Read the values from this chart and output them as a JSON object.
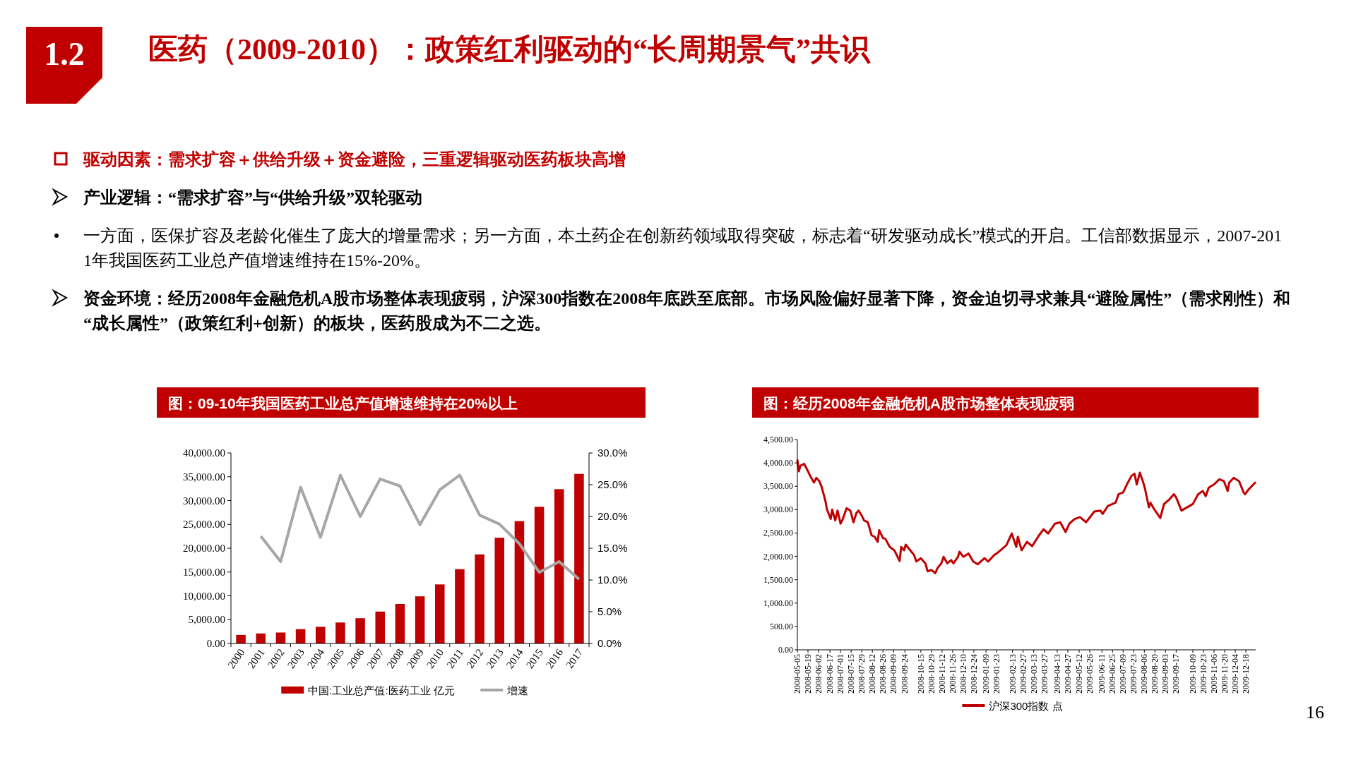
{
  "chart_data": [
    {
      "type": "other",
      "title": "医药（2009-2010）：政策红利驱动的“长周期景气”共识",
      "annotations": [
        "1.2",
        "驱动因素：需求扩容＋供给升级＋资金避险，三重逻辑驱动医药板块高增",
        "产业逻辑：“需求扩容”与“供给升级”双轮驱动",
        "一方面，医保扩容及老龄化催生了庞大的增量需求；另一方面，本土药企在创新药领域取得突破，标志着“研发驱动成长”模式的开启。工信部数据显示，2007-2011年我国医药工业总产值增速维持在15%-20%。",
        "资金环境：经历2008年金融危机A股市场整体表现疲弱，沪深300指数在2008年底跌至底部。市场风险偏好显著下降，资金迫切寻求兼具“避险属性”（需求刚性）和“成长属性”（政策红利+创新）的板块，医药股成为不二之选。",
        "16"
      ]
    },
    {
      "type": "bar",
      "title": "图：09-10年我国医药工业总产值增速维持在20%以上",
      "categories": [
        "2000",
        "2001",
        "2002",
        "2003",
        "2004",
        "2005",
        "2006",
        "2007",
        "2008",
        "2009",
        "2010",
        "2011",
        "2012",
        "2013",
        "2014",
        "2015",
        "2016",
        "2017"
      ],
      "series": [
        {
          "name": "中国:工业总产值:医药工业 亿元",
          "type": "bar",
          "color": "#c00000",
          "values": [
            1800,
            2100,
            2300,
            3000,
            3500,
            4400,
            5300,
            6700,
            8300,
            9900,
            12400,
            15600,
            18700,
            22200,
            25700,
            28700,
            32400,
            35600
          ]
        },
        {
          "name": "增速",
          "type": "line",
          "axis": "y2",
          "color": "#a6a6a6",
          "values": [
            null,
            16.9,
            12.9,
            24.6,
            16.7,
            26.5,
            20.0,
            25.9,
            24.8,
            18.7,
            24.2,
            26.5,
            20.2,
            18.8,
            15.7,
            11.2,
            12.9,
            10.1
          ]
        }
      ],
      "ylim": [
        0,
        40000
      ],
      "yticks": [
        {
          "value": 0,
          "label": "0.00"
        },
        {
          "value": 5000,
          "label": "5,000.00"
        },
        {
          "value": 10000,
          "label": "10,000.00"
        },
        {
          "value": 15000,
          "label": "15,000.00"
        },
        {
          "value": 20000,
          "label": "20,000.00"
        },
        {
          "value": 25000,
          "label": "25,000.00"
        },
        {
          "value": 30000,
          "label": "30,000.00"
        },
        {
          "value": 35000,
          "label": "35,000.00"
        },
        {
          "value": 40000,
          "label": "40,000.00"
        }
      ],
      "y2lim": [
        0,
        30
      ],
      "y2ticks": [
        {
          "value": 0,
          "label": "0.0%"
        },
        {
          "value": 5,
          "label": "5.0%"
        },
        {
          "value": 10,
          "label": "10.0%"
        },
        {
          "value": 15,
          "label": "15.0%"
        },
        {
          "value": 20,
          "label": "20.0%"
        },
        {
          "value": 25,
          "label": "25.0%"
        },
        {
          "value": 30,
          "label": "30.0%"
        }
      ],
      "grid": false,
      "legend": "bottom"
    },
    {
      "type": "line",
      "title": "图：经历2008年金融危机A股市场整体表现疲弱",
      "xlim": [
        "2008-05-05",
        "2009-12-31"
      ],
      "xticks": [
        "2008-05-05",
        "2008-05-19",
        "2008-06-02",
        "2008-06-17",
        "2008-07-01",
        "2008-07-15",
        "2008-07-29",
        "2008-08-12",
        "2008-08-26",
        "2008-09-09",
        "2008-09-24",
        "2008-10-15",
        "2008-10-29",
        "2008-11-12",
        "2008-11-26",
        "2008-12-10",
        "2008-12-24",
        "2009-01-09",
        "2009-01-23",
        "2009-02-13",
        "2009-02-27",
        "2009-03-13",
        "2009-03-27",
        "2009-04-13",
        "2009-04-27",
        "2009-05-12",
        "2009-05-26",
        "2009-06-11",
        "2009-06-25",
        "2009-07-09",
        "2009-07-23",
        "2009-08-06",
        "2009-08-20",
        "2009-09-03",
        "2009-09-17",
        "2009-10-09",
        "2009-10-23",
        "2009-11-06",
        "2009-11-20",
        "2009-12-04",
        "2009-12-18"
      ],
      "ylim": [
        0,
        4500
      ],
      "yticks": [
        {
          "value": 0,
          "label": "0.00"
        },
        {
          "value": 500,
          "label": "500.00"
        },
        {
          "value": 1000,
          "label": "1,000.00"
        },
        {
          "value": 1500,
          "label": "1,500.00"
        },
        {
          "value": 2000,
          "label": "2,000.00"
        },
        {
          "value": 2500,
          "label": "2,500.00"
        },
        {
          "value": 3000,
          "label": "3,000.00"
        },
        {
          "value": 3500,
          "label": "3,500.00"
        },
        {
          "value": 4000,
          "label": "4,000.00"
        },
        {
          "value": 4500,
          "label": "4,500.00"
        }
      ],
      "grid": false,
      "legend": "bottom",
      "marker": "none",
      "series": [
        {
          "name": "沪深300指数 点",
          "color": "#c00000",
          "x": [
            "2008-05-05",
            "2008-05-07",
            "2008-05-09",
            "2008-05-14",
            "2008-05-20",
            "2008-05-22",
            "2008-05-27",
            "2008-05-30",
            "2008-06-03",
            "2008-06-06",
            "2008-06-11",
            "2008-06-13",
            "2008-06-18",
            "2008-06-20",
            "2008-06-24",
            "2008-06-27",
            "2008-07-01",
            "2008-07-04",
            "2008-07-09",
            "2008-07-14",
            "2008-07-18",
            "2008-07-22",
            "2008-07-25",
            "2008-07-29",
            "2008-08-01",
            "2008-08-06",
            "2008-08-11",
            "2008-08-15",
            "2008-08-19",
            "2008-08-21",
            "2008-08-26",
            "2008-08-29",
            "2008-09-04",
            "2008-09-10",
            "2008-09-17",
            "2008-09-19",
            "2008-09-23",
            "2008-09-25",
            "2008-10-06",
            "2008-10-09",
            "2008-10-15",
            "2008-10-21",
            "2008-10-24",
            "2008-10-29",
            "2008-11-03",
            "2008-11-06",
            "2008-11-11",
            "2008-11-14",
            "2008-11-19",
            "2008-11-24",
            "2008-11-27",
            "2008-12-03",
            "2008-12-05",
            "2008-12-10",
            "2008-12-17",
            "2008-12-23",
            "2008-12-29",
            "2009-01-07",
            "2009-01-12",
            "2009-01-20",
            "2009-01-23",
            "2009-02-05",
            "2009-02-12",
            "2009-02-18",
            "2009-02-20",
            "2009-02-25",
            "2009-03-04",
            "2009-03-11",
            "2009-03-20",
            "2009-03-26",
            "2009-04-01",
            "2009-04-10",
            "2009-04-17",
            "2009-04-24",
            "2009-04-29",
            "2009-05-06",
            "2009-05-13",
            "2009-05-21",
            "2009-06-01",
            "2009-06-09",
            "2009-06-12",
            "2009-06-19",
            "2009-06-29",
            "2009-07-03",
            "2009-07-09",
            "2009-07-14",
            "2009-07-20",
            "2009-07-24",
            "2009-07-27",
            "2009-07-31",
            "2009-08-04",
            "2009-08-07",
            "2009-08-12",
            "2009-08-14",
            "2009-08-19",
            "2009-08-27",
            "2009-09-01",
            "2009-09-08",
            "2009-09-14",
            "2009-09-17",
            "2009-09-24",
            "2009-10-09",
            "2009-10-16",
            "2009-10-22",
            "2009-10-26",
            "2009-10-30",
            "2009-11-06",
            "2009-11-13",
            "2009-11-19",
            "2009-11-24",
            "2009-11-26",
            "2009-12-02",
            "2009-12-09",
            "2009-12-15",
            "2009-12-17",
            "2009-12-22",
            "2009-12-31"
          ],
          "values": [
            4070,
            3820,
            3940,
            3980,
            3790,
            3720,
            3580,
            3680,
            3610,
            3490,
            3190,
            3010,
            2800,
            3000,
            2770,
            2980,
            2700,
            2800,
            3030,
            2980,
            2730,
            2930,
            2980,
            2870,
            2770,
            2730,
            2450,
            2420,
            2310,
            2560,
            2390,
            2380,
            2200,
            2130,
            1900,
            2200,
            2130,
            2250,
            2030,
            1890,
            1960,
            1850,
            1680,
            1710,
            1640,
            1750,
            1850,
            1990,
            1850,
            1920,
            1850,
            1990,
            2100,
            1990,
            2060,
            1890,
            1830,
            1960,
            1890,
            2030,
            2060,
            2240,
            2490,
            2200,
            2420,
            2130,
            2310,
            2220,
            2450,
            2580,
            2490,
            2700,
            2730,
            2520,
            2700,
            2800,
            2840,
            2730,
            2960,
            2980,
            2910,
            3080,
            3150,
            3330,
            3370,
            3540,
            3720,
            3770,
            3540,
            3790,
            3610,
            3440,
            3050,
            3150,
            3010,
            2820,
            3120,
            3220,
            3330,
            3260,
            2980,
            3120,
            3330,
            3400,
            3290,
            3470,
            3540,
            3650,
            3610,
            3400,
            3580,
            3680,
            3610,
            3370,
            3330,
            3440,
            3590
          ]
        }
      ]
    }
  ]
}
